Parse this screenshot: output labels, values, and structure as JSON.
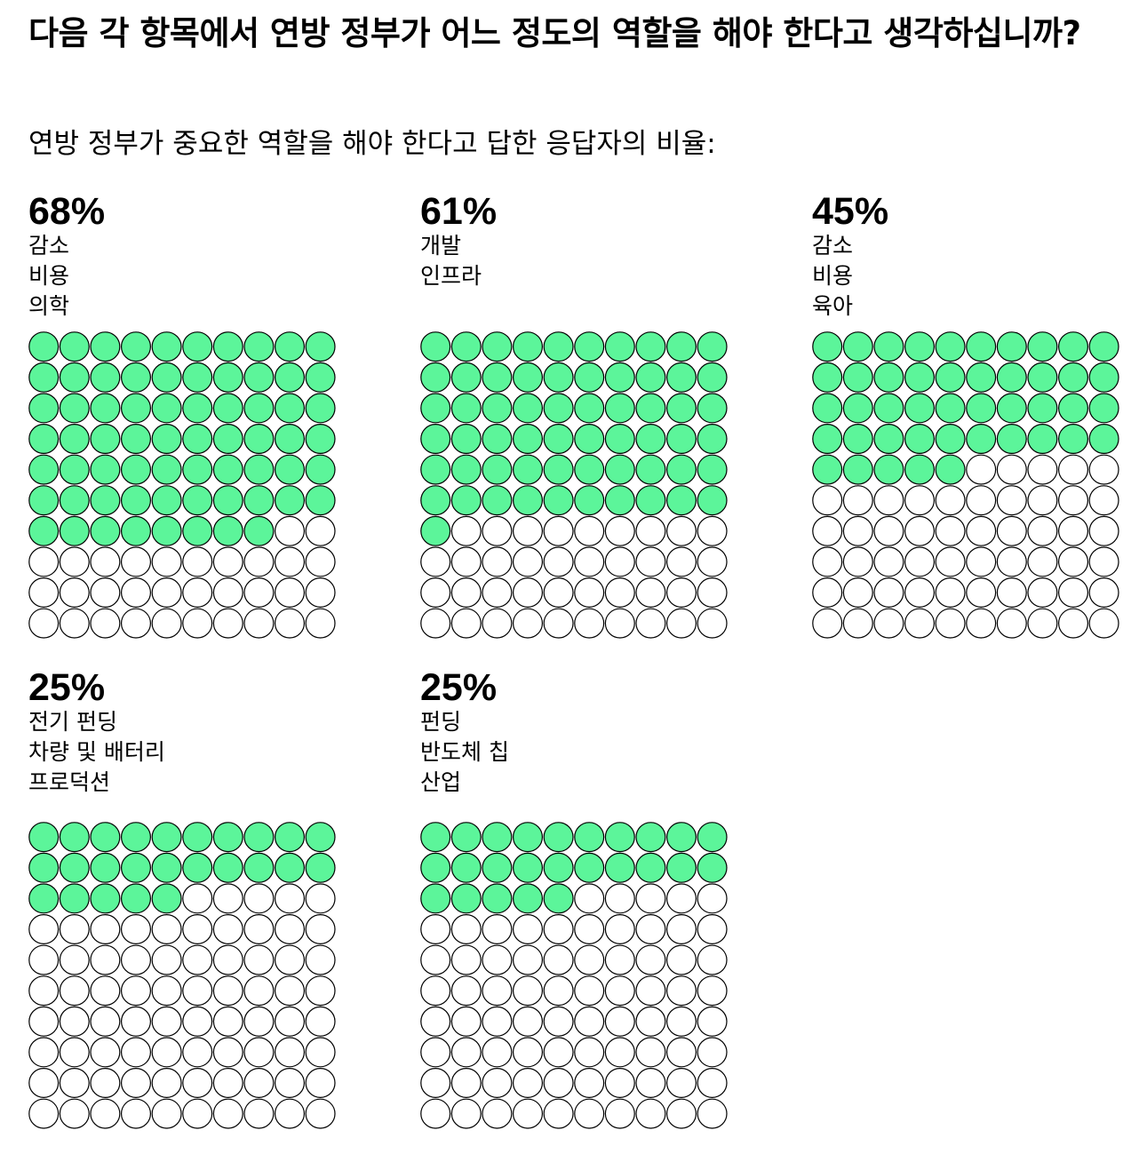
{
  "title": "다음 각 항목에서 연방 정부가 어느 정도의 역할을 해야 한다고 생각하십니까?",
  "subtitle": "연방 정부가 중요한 역할을 해야 한다고 답한 응답자의 비율:",
  "colors": {
    "filled": "#5cf59a",
    "empty": "#ffffff",
    "outline": "#000000"
  },
  "chart_data": {
    "type": "waffle",
    "grid": {
      "rows": 10,
      "cols": 10,
      "total": 100
    },
    "panels": [
      {
        "percent_label": "68%",
        "value": 68,
        "label_lines": [
          "감소",
          "비용",
          "의학"
        ]
      },
      {
        "percent_label": "61%",
        "value": 61,
        "label_lines": [
          "개발",
          "인프라"
        ]
      },
      {
        "percent_label": "45%",
        "value": 45,
        "label_lines": [
          "감소",
          "비용",
          "육아"
        ]
      },
      {
        "percent_label": "25%",
        "value": 25,
        "label_lines": [
          "전기 펀딩",
          "차량 및 배터리",
          "프로덕션"
        ]
      },
      {
        "percent_label": "25%",
        "value": 25,
        "label_lines": [
          "펀딩",
          "반도체 칩",
          "산업"
        ]
      }
    ]
  }
}
